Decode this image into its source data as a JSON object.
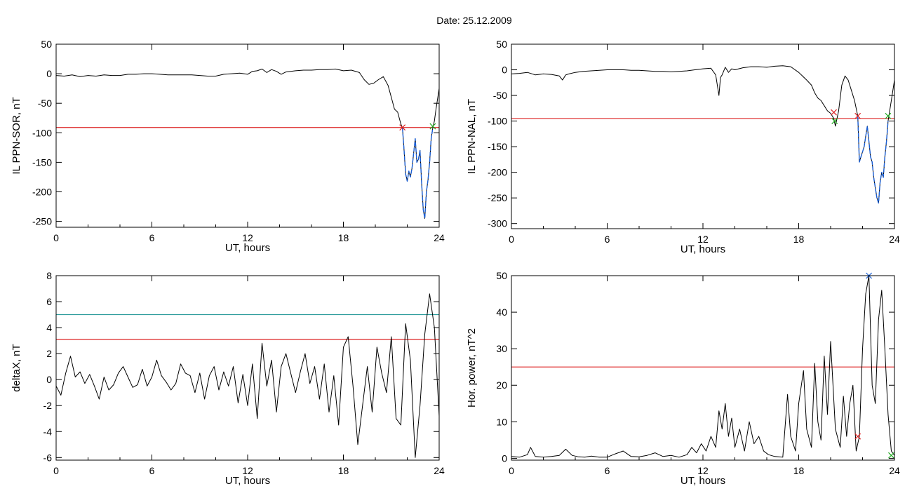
{
  "header": {
    "title": "Date:  25.12.2009"
  },
  "chart_data": [
    {
      "type": "line",
      "ylabel": "IL PPN-SOR, nT",
      "xlabel": "UT, hours",
      "xlim": [
        0,
        24
      ],
      "ylim": [
        -260,
        50
      ],
      "x_ticks": [
        0,
        6,
        12,
        18,
        24
      ],
      "y_ticks": [
        50,
        0,
        -50,
        -100,
        -150,
        -200,
        -250
      ],
      "threshold_lines": [
        {
          "value": -91,
          "color": "#dd2222"
        }
      ],
      "highlight": {
        "from": 21.7,
        "to": 23.6,
        "color": "#1a5fd6"
      },
      "markers": [
        {
          "x": 21.7,
          "y": -91,
          "color": "#dd2222"
        },
        {
          "x": 23.6,
          "y": -89,
          "color": "#22aa22"
        }
      ],
      "series": [
        {
          "color": "#000000",
          "x": [
            0,
            0.5,
            1,
            1.5,
            2,
            2.5,
            3,
            3.5,
            4,
            4.5,
            5,
            5.5,
            6,
            6.5,
            7,
            7.5,
            8,
            8.5,
            9,
            9.5,
            10,
            10.5,
            11,
            11.5,
            12,
            12.3,
            12.6,
            12.9,
            13.2,
            13.5,
            13.8,
            14.1,
            14.4,
            14.7,
            15,
            15.5,
            16,
            16.5,
            17,
            17.5,
            18,
            18.5,
            19,
            19.3,
            19.6,
            19.9,
            20.2,
            20.5,
            20.8,
            21.0,
            21.2,
            21.4,
            21.6,
            21.7,
            21.8,
            21.9,
            22.0,
            22.1,
            22.2,
            22.3,
            22.4,
            22.5,
            22.6,
            22.7,
            22.8,
            22.9,
            23.0,
            23.1,
            23.2,
            23.3,
            23.4,
            23.5,
            23.6,
            23.7,
            23.8,
            24.0
          ],
          "values": [
            -3,
            -4,
            -2,
            -5,
            -3,
            -4,
            -2,
            -3,
            -3,
            -1,
            -1,
            0,
            0,
            -1,
            -2,
            -2,
            -2,
            -2,
            -3,
            -4,
            -4,
            -1,
            0,
            1,
            -1,
            4,
            5,
            8,
            2,
            7,
            4,
            -1,
            3,
            4,
            5,
            6,
            6,
            7,
            7,
            8,
            5,
            6,
            2,
            -10,
            -18,
            -16,
            -10,
            -5,
            -20,
            -40,
            -60,
            -65,
            -85,
            -92,
            -130,
            -170,
            -182,
            -165,
            -175,
            -160,
            -135,
            -110,
            -150,
            -145,
            -130,
            -185,
            -230,
            -245,
            -200,
            -180,
            -150,
            -110,
            -92,
            -80,
            -60,
            -25
          ]
        }
      ]
    },
    {
      "type": "line",
      "ylabel": "IL PPN-NAL, nT",
      "xlabel": "UT, hours",
      "xlim": [
        0,
        24
      ],
      "ylim": [
        -310,
        50
      ],
      "x_ticks": [
        0,
        6,
        12,
        18,
        24
      ],
      "y_ticks": [
        50,
        0,
        -50,
        -100,
        -150,
        -200,
        -250,
        -300
      ],
      "threshold_lines": [
        {
          "value": -95,
          "color": "#dd2222"
        }
      ],
      "highlight": {
        "from": 21.7,
        "to": 23.6,
        "color": "#1a5fd6"
      },
      "markers": [
        {
          "x": 20.2,
          "y": -83,
          "color": "#dd2222"
        },
        {
          "x": 20.25,
          "y": -100,
          "color": "#22aa22"
        },
        {
          "x": 21.7,
          "y": -90,
          "color": "#dd2222"
        },
        {
          "x": 23.6,
          "y": -90,
          "color": "#22aa22"
        }
      ],
      "series": [
        {
          "color": "#000000",
          "x": [
            0,
            0.5,
            1,
            1.5,
            2,
            2.5,
            3,
            3.2,
            3.4,
            3.6,
            4,
            4.5,
            5,
            5.5,
            6,
            6.5,
            7,
            7.5,
            8,
            8.5,
            9,
            9.5,
            10,
            10.5,
            11,
            11.5,
            12,
            12.5,
            12.8,
            13.0,
            13.1,
            13.2,
            13.4,
            13.6,
            13.8,
            14,
            14.5,
            15,
            15.5,
            16,
            16.5,
            17,
            17.5,
            18,
            18.5,
            18.8,
            19.0,
            19.2,
            19.4,
            19.6,
            19.8,
            20.0,
            20.2,
            20.3,
            20.5,
            20.7,
            20.9,
            21.1,
            21.3,
            21.5,
            21.7,
            21.8,
            21.9,
            22.0,
            22.1,
            22.2,
            22.3,
            22.4,
            22.5,
            22.6,
            22.7,
            22.8,
            22.9,
            23.0,
            23.1,
            23.2,
            23.3,
            23.4,
            23.5,
            23.6,
            23.8,
            24.0
          ],
          "values": [
            -8,
            -7,
            -5,
            -10,
            -8,
            -9,
            -12,
            -20,
            -10,
            -8,
            -5,
            -3,
            -2,
            -1,
            0,
            0,
            0,
            -1,
            -1,
            -2,
            -3,
            -3,
            -4,
            -3,
            -2,
            0,
            2,
            3,
            -10,
            -50,
            -15,
            -10,
            5,
            -5,
            2,
            0,
            4,
            6,
            6,
            5,
            7,
            8,
            6,
            -5,
            -20,
            -30,
            -45,
            -55,
            -60,
            -70,
            -80,
            -85,
            -95,
            -110,
            -80,
            -30,
            -12,
            -20,
            -40,
            -60,
            -90,
            -180,
            -170,
            -160,
            -150,
            -130,
            -110,
            -140,
            -170,
            -180,
            -210,
            -230,
            -250,
            -260,
            -220,
            -200,
            -210,
            -170,
            -140,
            -100,
            -60,
            -20
          ]
        }
      ]
    },
    {
      "type": "line",
      "ylabel": "deltaX, nT",
      "xlabel": "UT, hours",
      "xlim": [
        0,
        24
      ],
      "ylim": [
        -6.2,
        8
      ],
      "x_ticks": [
        0,
        6,
        12,
        18,
        24
      ],
      "y_ticks": [
        8,
        6,
        4,
        2,
        0,
        -2,
        -4,
        -6
      ],
      "threshold_lines": [
        {
          "value": 5.0,
          "color": "#2a9a9a"
        },
        {
          "value": 3.1,
          "color": "#dd2222"
        }
      ],
      "markers": [],
      "series": [
        {
          "color": "#000000",
          "x": [
            0,
            0.3,
            0.6,
            0.9,
            1.2,
            1.5,
            1.8,
            2.1,
            2.4,
            2.7,
            3.0,
            3.3,
            3.6,
            3.9,
            4.2,
            4.5,
            4.8,
            5.1,
            5.4,
            5.7,
            6.0,
            6.3,
            6.6,
            6.9,
            7.2,
            7.5,
            7.8,
            8.1,
            8.4,
            8.7,
            9.0,
            9.3,
            9.6,
            9.9,
            10.2,
            10.5,
            10.8,
            11.1,
            11.4,
            11.7,
            12.0,
            12.3,
            12.6,
            12.9,
            13.2,
            13.5,
            13.8,
            14.1,
            14.4,
            14.7,
            15.0,
            15.3,
            15.6,
            15.9,
            16.2,
            16.5,
            16.8,
            17.1,
            17.4,
            17.7,
            18.0,
            18.3,
            18.6,
            18.9,
            19.2,
            19.5,
            19.8,
            20.1,
            20.4,
            20.7,
            21.0,
            21.3,
            21.6,
            21.9,
            22.2,
            22.5,
            22.8,
            23.1,
            23.4,
            23.7,
            24.0
          ],
          "values": [
            -0.5,
            -1.2,
            0.5,
            1.8,
            0.2,
            0.6,
            -0.3,
            0.4,
            -0.5,
            -1.5,
            0.2,
            -0.8,
            -0.4,
            0.5,
            1.0,
            0.2,
            -0.6,
            -0.4,
            0.8,
            -0.5,
            0.2,
            1.5,
            0.3,
            -0.2,
            -0.8,
            -0.3,
            1.2,
            0.5,
            0.3,
            -1.0,
            0.5,
            -1.5,
            0.3,
            1.0,
            -0.8,
            0.6,
            -0.5,
            1.0,
            -1.8,
            0.4,
            -2.0,
            1.2,
            -3.0,
            2.8,
            -0.5,
            1.5,
            -2.5,
            1.0,
            2.0,
            0.5,
            -1.0,
            0.6,
            2.0,
            -0.3,
            1.0,
            -1.5,
            1.2,
            -2.5,
            0.3,
            -3.5,
            2.5,
            3.3,
            -0.5,
            -5.0,
            -2.0,
            1.0,
            -2.5,
            2.5,
            0.5,
            -1.0,
            3.3,
            -3.0,
            -3.5,
            4.3,
            1.5,
            -6.0,
            -2.0,
            3.5,
            6.6,
            4.0,
            -2.8
          ]
        }
      ]
    },
    {
      "type": "line",
      "ylabel": "Hor. power, nT^2",
      "xlabel": "UT, hours",
      "xlim": [
        0,
        24
      ],
      "ylim": [
        -0.5,
        50
      ],
      "x_ticks": [
        0,
        6,
        12,
        18,
        24
      ],
      "y_ticks": [
        50,
        40,
        30,
        20,
        10,
        0
      ],
      "threshold_lines": [
        {
          "value": 25,
          "color": "#dd2222"
        }
      ],
      "markers": [
        {
          "x": 21.7,
          "y": 6,
          "color": "#dd2222"
        },
        {
          "x": 22.4,
          "y": 50,
          "color": "#1a5fd6"
        },
        {
          "x": 23.8,
          "y": 0.8,
          "color": "#22aa22"
        }
      ],
      "series": [
        {
          "color": "#000000",
          "x": [
            0,
            0.5,
            1.0,
            1.2,
            1.5,
            2,
            2.5,
            3,
            3.4,
            3.8,
            4.2,
            4.6,
            5,
            5.5,
            6,
            6.5,
            7,
            7.5,
            8,
            8.5,
            9,
            9.5,
            10,
            10.5,
            11,
            11.3,
            11.6,
            11.9,
            12.2,
            12.5,
            12.8,
            13.0,
            13.2,
            13.4,
            13.6,
            13.8,
            14.0,
            14.3,
            14.6,
            14.9,
            15.2,
            15.5,
            15.8,
            16.1,
            16.5,
            17.0,
            17.3,
            17.5,
            17.8,
            18.0,
            18.3,
            18.5,
            18.8,
            19.0,
            19.2,
            19.4,
            19.6,
            19.8,
            20.0,
            20.3,
            20.6,
            20.8,
            21.0,
            21.2,
            21.4,
            21.6,
            21.8,
            22.0,
            22.2,
            22.4,
            22.6,
            22.8,
            23.0,
            23.2,
            23.4,
            23.6,
            23.8,
            24.0
          ],
          "values": [
            0.5,
            0.3,
            1.0,
            3.0,
            0.5,
            0.3,
            0.5,
            0.8,
            2.5,
            0.8,
            0.4,
            0.3,
            0.6,
            0.3,
            0.3,
            1.2,
            2.0,
            0.5,
            0.4,
            0.8,
            1.5,
            0.5,
            0.8,
            0.3,
            1.0,
            3.0,
            1.5,
            4.0,
            2.0,
            6.0,
            3.0,
            13.0,
            8.0,
            15.0,
            6.0,
            11.0,
            3.0,
            8.0,
            2.0,
            10.0,
            4.0,
            6.0,
            2.0,
            1.0,
            0.5,
            0.3,
            17.5,
            6.0,
            2.0,
            15.0,
            24.0,
            8.0,
            3.0,
            26.0,
            10.0,
            5.0,
            28.0,
            12.0,
            32.0,
            8.0,
            3.0,
            17.0,
            6.0,
            15.0,
            20.0,
            2.0,
            6.0,
            30.0,
            45.0,
            50.0,
            20.0,
            15.0,
            38.0,
            46.0,
            30.0,
            12.0,
            2.0,
            0.8
          ]
        }
      ]
    }
  ]
}
